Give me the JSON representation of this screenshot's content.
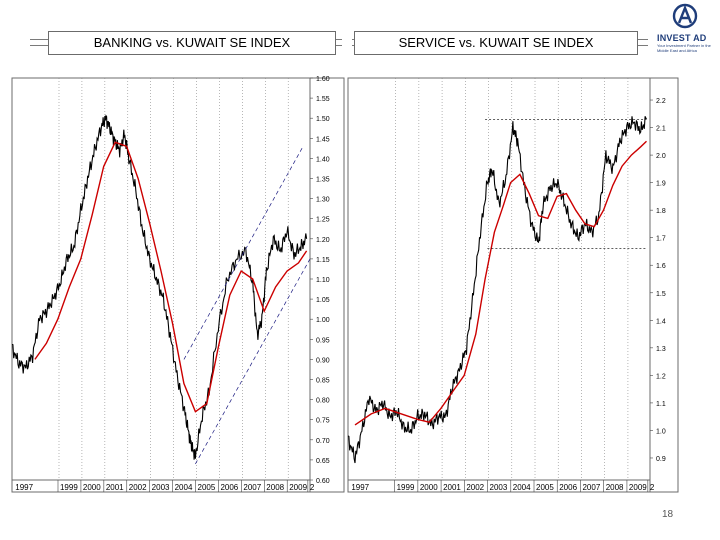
{
  "titles": {
    "left": "BANKING vs. KUWAIT SE INDEX",
    "right": "SERVICE vs. KUWAIT SE INDEX"
  },
  "logo": {
    "icon": "invest-ad-logo-icon",
    "name": "INVEST AD",
    "tagline": "Your Investment Partner in the Middle East and Africa"
  },
  "page_number": "18",
  "colors": {
    "price": "#000000",
    "moving_average": "#cc0000",
    "channel": "#1a1a80",
    "frame": "#6b6b6b"
  },
  "chart_data": [
    {
      "type": "line",
      "title": "BANKING vs. KUWAIT SE INDEX",
      "x_tick_labels": [
        "1997",
        "1999",
        "2000",
        "2001",
        "2002",
        "2003",
        "2004",
        "2005",
        "2006",
        "2007",
        "2008",
        "2009",
        "2"
      ],
      "y_tick_labels": [
        "0.60",
        "0.65",
        "0.70",
        "0.75",
        "0.80",
        "0.85",
        "0.90",
        "0.95",
        "1.00",
        "1.05",
        "1.10",
        "1.15",
        "1.20",
        "1.25",
        "1.30",
        "1.35",
        "1.40",
        "1.45",
        "1.50",
        "1.55",
        "1.60"
      ],
      "ylim": [
        0.6,
        1.6
      ],
      "xlim": [
        1997.0,
        2010.0
      ],
      "grid": "vertical dotted",
      "series": [
        {
          "style": "price",
          "x": [
            1997.0,
            1997.3,
            1997.6,
            1997.9,
            1998.2,
            1998.5,
            1998.8,
            1999.1,
            1999.4,
            1999.7,
            2000.0,
            2000.3,
            2000.6,
            2000.9,
            2001.1,
            2001.3,
            2001.5,
            2001.7,
            2001.9,
            2002.1,
            2002.4,
            2002.7,
            2003.0,
            2003.3,
            2003.6,
            2003.9,
            2004.2,
            2004.5,
            2004.7,
            2004.85,
            2005.0,
            2005.3,
            2005.6,
            2006.0,
            2006.4,
            2006.8,
            2007.2,
            2007.5,
            2007.7,
            2007.9,
            2008.1,
            2008.4,
            2008.7,
            2009.0,
            2009.3,
            2009.6,
            2009.85
          ],
          "y": [
            0.93,
            0.89,
            0.88,
            0.91,
            1.0,
            1.02,
            1.05,
            1.09,
            1.15,
            1.18,
            1.27,
            1.35,
            1.42,
            1.48,
            1.5,
            1.47,
            1.44,
            1.42,
            1.46,
            1.4,
            1.32,
            1.22,
            1.15,
            1.1,
            1.05,
            0.96,
            0.86,
            0.78,
            0.72,
            0.68,
            0.66,
            0.76,
            0.82,
            0.98,
            1.1,
            1.15,
            1.17,
            1.09,
            0.96,
            1.0,
            1.12,
            1.2,
            1.17,
            1.22,
            1.16,
            1.18,
            1.2
          ]
        },
        {
          "style": "moving_average",
          "x": [
            1998.0,
            1998.5,
            1999.0,
            1999.5,
            2000.0,
            2000.5,
            2001.0,
            2001.5,
            2002.0,
            2002.5,
            2003.0,
            2003.5,
            2004.0,
            2004.5,
            2005.0,
            2005.5,
            2006.0,
            2006.5,
            2007.0,
            2007.5,
            2008.0,
            2008.5,
            2009.0,
            2009.5,
            2009.85
          ],
          "y": [
            0.9,
            0.94,
            1.0,
            1.08,
            1.15,
            1.26,
            1.38,
            1.44,
            1.43,
            1.35,
            1.24,
            1.12,
            0.99,
            0.84,
            0.77,
            0.79,
            0.93,
            1.06,
            1.12,
            1.1,
            1.02,
            1.08,
            1.12,
            1.14,
            1.17
          ]
        },
        {
          "style": "channel",
          "x": [
            2004.5,
            2009.7
          ],
          "y": [
            0.9,
            1.43
          ]
        },
        {
          "style": "channel",
          "x": [
            2005.0,
            2010.0
          ],
          "y": [
            0.64,
            1.15
          ]
        }
      ]
    },
    {
      "type": "line",
      "title": "SERVICE vs. KUWAIT SE INDEX",
      "x_tick_labels": [
        "1997",
        "1999",
        "2000",
        "2001",
        "2002",
        "2003",
        "2004",
        "2005",
        "2006",
        "2007",
        "2008",
        "2009",
        "2"
      ],
      "y_tick_labels": [
        "0.9",
        "1.0",
        "1.1",
        "1.2",
        "1.3",
        "1.4",
        "1.5",
        "1.6",
        "1.7",
        "1.8",
        "1.9",
        "2.0",
        "2.1",
        "2.2"
      ],
      "ylim": [
        0.82,
        2.28
      ],
      "xlim": [
        1997.0,
        2010.0
      ],
      "grid": "vertical dotted",
      "series": [
        {
          "style": "price",
          "x": [
            1997.0,
            1997.3,
            1997.6,
            1997.9,
            1998.2,
            1998.5,
            1998.8,
            1999.1,
            1999.4,
            1999.7,
            2000.0,
            2000.3,
            2000.6,
            2000.9,
            2001.2,
            2001.5,
            2001.8,
            2002.1,
            2002.4,
            2002.7,
            2003.0,
            2003.2,
            2003.5,
            2003.8,
            2004.1,
            2004.3,
            2004.6,
            2004.9,
            2005.2,
            2005.4,
            2005.7,
            2006.0,
            2006.3,
            2006.6,
            2006.9,
            2007.2,
            2007.5,
            2007.8,
            2008.1,
            2008.4,
            2008.7,
            2009.0,
            2009.3,
            2009.6,
            2009.85
          ],
          "y": [
            0.97,
            0.9,
            1.0,
            1.12,
            1.07,
            1.1,
            1.05,
            1.07,
            1.01,
            1.0,
            1.05,
            1.06,
            1.02,
            1.05,
            1.05,
            1.16,
            1.22,
            1.3,
            1.5,
            1.72,
            1.9,
            1.95,
            1.82,
            1.92,
            2.1,
            2.05,
            1.88,
            1.75,
            1.68,
            1.82,
            1.88,
            1.9,
            1.83,
            1.75,
            1.7,
            1.75,
            1.72,
            1.78,
            2.0,
            1.95,
            2.05,
            2.1,
            2.12,
            2.09,
            2.13
          ]
        },
        {
          "style": "moving_average",
          "x": [
            1997.3,
            1998.0,
            1998.6,
            1999.3,
            2000.0,
            2000.5,
            2001.0,
            2001.5,
            2002.0,
            2002.5,
            2002.9,
            2003.3,
            2003.7,
            2004.0,
            2004.4,
            2004.8,
            2005.2,
            2005.6,
            2006.0,
            2006.4,
            2006.8,
            2007.2,
            2007.6,
            2008.0,
            2008.4,
            2008.8,
            2009.2,
            2009.6,
            2009.85
          ],
          "y": [
            1.02,
            1.06,
            1.08,
            1.06,
            1.04,
            1.03,
            1.08,
            1.14,
            1.2,
            1.35,
            1.55,
            1.72,
            1.82,
            1.9,
            1.93,
            1.86,
            1.78,
            1.77,
            1.85,
            1.86,
            1.8,
            1.75,
            1.74,
            1.8,
            1.89,
            1.96,
            2.0,
            2.03,
            2.05
          ]
        },
        {
          "style": "reference",
          "x": [
            2002.9,
            2009.85
          ],
          "y": [
            2.13,
            2.13
          ]
        },
        {
          "style": "reference",
          "x": [
            2003.0,
            2009.85
          ],
          "y": [
            1.66,
            1.66
          ]
        }
      ]
    }
  ]
}
